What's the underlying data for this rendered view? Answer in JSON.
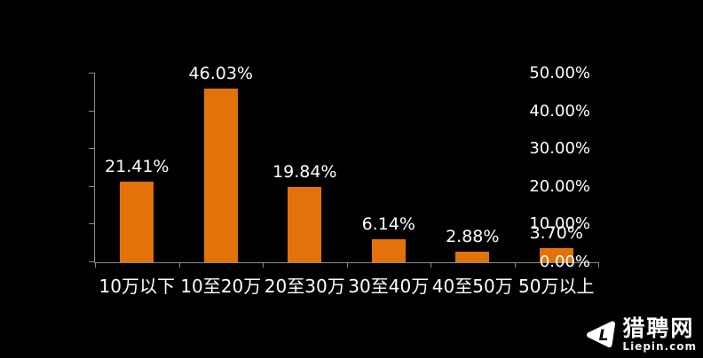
{
  "chart_data": {
    "type": "bar",
    "categories": [
      "10万以下",
      "10至20万",
      "20至30万",
      "30至40万",
      "40至50万",
      "50万以上"
    ],
    "values": [
      21.41,
      46.03,
      19.84,
      6.14,
      2.88,
      3.7
    ],
    "value_labels": [
      "21.41%",
      "46.03%",
      "19.84%",
      "6.14%",
      "2.88%",
      "3.70%"
    ],
    "title": "",
    "xlabel": "",
    "ylabel": "",
    "ylim": [
      0,
      50
    ],
    "y_tick_labels": [
      "0.00%",
      "10.00%",
      "20.00%",
      "30.00%",
      "40.00%",
      "50.00%"
    ],
    "grid": false,
    "legend": "none",
    "colors": {
      "bar": "#e3720a",
      "background": "#000000",
      "axis": "#8a8a8a",
      "text": "#ffffff"
    }
  },
  "watermark": {
    "icon": "liepin-logo-icon",
    "brand_cn": "猎聘网",
    "brand_en": "Liepin.com"
  }
}
